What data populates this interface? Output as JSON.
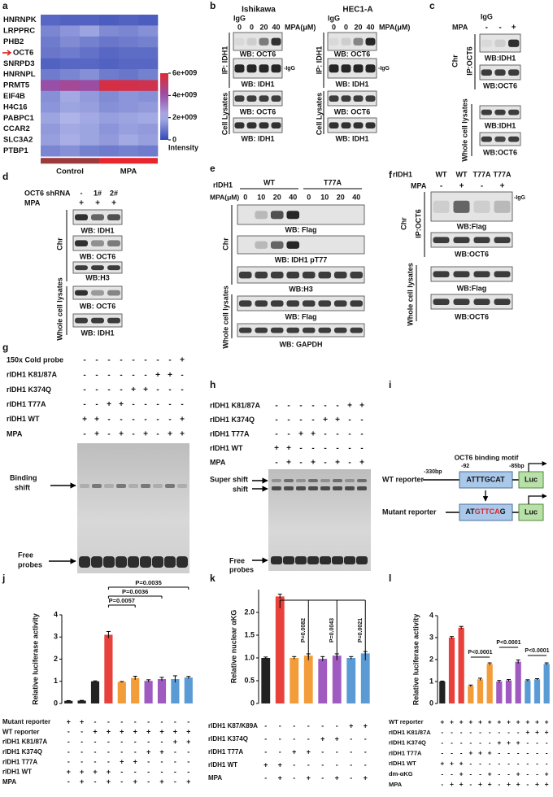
{
  "letters": [
    "a",
    "b",
    "c",
    "d",
    "e",
    "f",
    "g",
    "h",
    "i",
    "j",
    "k",
    "l"
  ],
  "b": {
    "cells": [
      {
        "title": "Ishikawa",
        "igg": "IgG",
        "mpa": "MPA(μM)",
        "lanes": [
          "0",
          "0",
          "20",
          "40"
        ],
        "ip": "IP: IDH1",
        "lysates": "Cell Lysates",
        "blots": [
          "WB: OCT6",
          "WB: IDH1",
          "WB: OCT6",
          "WB: IDH1"
        ],
        "igg_mark": "-IgG"
      },
      {
        "title": "HEC1-A",
        "igg": "IgG",
        "mpa": "MPA(μM)",
        "lanes": [
          "0",
          "0",
          "20",
          "40"
        ],
        "ip": "IP: IDH1",
        "lysates": "Cell Lysates",
        "blots": [
          "WB: OCT6",
          "WB: IDH1",
          "WB: OCT6",
          "WB: IDH1"
        ],
        "igg_mark": "-IgG"
      }
    ]
  },
  "c": {
    "igg": "IgG",
    "mpa": "MPA",
    "lanes": [
      "-",
      "-",
      "+"
    ],
    "chr": "Chr",
    "ip": "IP:OCT6",
    "wcl": "Whole cell lysates",
    "blots": [
      "WB:IDH1",
      "WB:OCT6",
      "WB:IDH1",
      "WB:OCT6"
    ]
  },
  "d": {
    "shrna": "OCT6 shRNA",
    "shrna_lanes": [
      "-",
      "1#",
      "2#"
    ],
    "mpa": "MPA",
    "mpa_lanes": [
      "+",
      "+",
      "+"
    ],
    "chr": "Chr",
    "wcl": "Whole cell lysates",
    "blots": [
      "WB: IDH1",
      "WB: OCT6",
      "WB:H3",
      "WB: OCT6",
      "WB: IDH1"
    ]
  },
  "e": {
    "ridh1": "rIDH1",
    "groups": [
      "WT",
      "T77A"
    ],
    "mpa": "MPA(μM)",
    "lanes": [
      "0",
      "10",
      "20",
      "40",
      "0",
      "10",
      "20",
      "40"
    ],
    "chr": "Chr",
    "wcl": "Whole cell lysates",
    "blots": [
      "WB: Flag",
      "WB: IDH1 pT77",
      "WB:H3",
      "WB: Flag",
      "WB: GAPDH"
    ]
  },
  "f": {
    "ridh1": "rIDH1",
    "lanes": [
      "WT",
      "WT",
      "T77A",
      "T77A"
    ],
    "mpa": "MPA",
    "mpa_lanes": [
      "-",
      "+",
      "-",
      "+"
    ],
    "chr": "Chr",
    "ip": "IP:OCT6",
    "wcl": "Whole cell lysates",
    "blots": [
      "WB:Flag",
      "WB:OCT6",
      "WB:Flag",
      "WB:OCT6"
    ],
    "igg_mark": "-IgG"
  },
  "g": {
    "rows": [
      {
        "name": "150x Cold probe",
        "signs": [
          "-",
          "-",
          "-",
          "-",
          "-",
          "-",
          "-",
          "-",
          "+"
        ]
      },
      {
        "name": "rIDH1 K81/87A",
        "signs": [
          "-",
          "-",
          "-",
          "-",
          "-",
          "-",
          "+",
          "+",
          "-"
        ]
      },
      {
        "name": "rIDH1 K374Q",
        "signs": [
          "-",
          "-",
          "-",
          "-",
          "+",
          "+",
          "-",
          "-",
          "-"
        ]
      },
      {
        "name": "rIDH1 T77A",
        "signs": [
          "-",
          "-",
          "+",
          "+",
          "-",
          "-",
          "-",
          "-",
          "-"
        ]
      },
      {
        "name": "rIDH1 WT",
        "signs": [
          "+",
          "+",
          "-",
          "-",
          "-",
          "-",
          "-",
          "-",
          "+"
        ]
      },
      {
        "name": "MPA",
        "signs": [
          "-",
          "+",
          "-",
          "+",
          "-",
          "+",
          "-",
          "+",
          "+"
        ]
      }
    ],
    "shift": [
      "Binding",
      "shift"
    ],
    "free": [
      "Free",
      "probes"
    ]
  },
  "h": {
    "rows": [
      {
        "name": "rIDH1 K81/87A",
        "signs": [
          "-",
          "-",
          "-",
          "-",
          "-",
          "-",
          "+",
          "+"
        ]
      },
      {
        "name": "rIDH1 K374Q",
        "signs": [
          "-",
          "-",
          "-",
          "-",
          "+",
          "+",
          "-",
          "-"
        ]
      },
      {
        "name": "rIDH1 T77A",
        "signs": [
          "-",
          "-",
          "+",
          "+",
          "-",
          "-",
          "-",
          "-"
        ]
      },
      {
        "name": "rIDH1 WT",
        "signs": [
          "+",
          "+",
          "-",
          "-",
          "-",
          "-",
          "-",
          "-"
        ]
      },
      {
        "name": "MPA",
        "signs": [
          "-",
          "+",
          "-",
          "+",
          "-",
          "+",
          "-",
          "+"
        ]
      }
    ],
    "super_shift": "Super shift",
    "shift": "shift",
    "free": [
      "Free",
      "probes"
    ]
  },
  "i": {
    "motif": "OCT6 binding motif",
    "pos": [
      "-330bp",
      "-92",
      "-85bp"
    ],
    "wt": "WT reporter",
    "mut": "Mutant reporter",
    "wt_seq": "ATTTGCAT",
    "mut_seq": [
      "AT",
      "GTTCA",
      "G"
    ],
    "luc": "Luc"
  },
  "chart_data": [
    {
      "type": "heatmap",
      "rows": [
        "HNRNPK",
        "LRPPRC",
        "PHB2",
        "OCT6",
        "SNRPD3",
        "HNRNPL",
        "PRMT5",
        "EIF4B",
        "H4C16",
        "PABPC1",
        "CCAR2",
        "SLC3A2",
        "PTBP1"
      ],
      "groups": [
        "Control",
        "MPA"
      ],
      "values": [
        [
          600000000.0,
          500000000.0,
          500000000.0,
          400000000.0,
          500000000.0,
          400000000.0
        ],
        [
          1200000000.0,
          1500000000.0,
          1800000000.0,
          1300000000.0,
          1200000000.0,
          1400000000.0
        ],
        [
          1000000000.0,
          1300000000.0,
          1100000000.0,
          900000000.0,
          1000000000.0,
          1100000000.0
        ],
        [
          900000000.0,
          1000000000.0,
          800000000.0,
          600000000.0,
          700000000.0,
          700000000.0
        ],
        [
          500000000.0,
          600000000.0,
          600000000.0,
          500000000.0,
          600000000.0,
          600000000.0
        ],
        [
          1000000000.0,
          1200000000.0,
          1400000000.0,
          1000000000.0,
          900000000.0,
          1100000000.0
        ],
        [
          4000000000.0,
          4300000000.0,
          4100000000.0,
          5700000000.0,
          5600000000.0,
          5500000000.0
        ],
        [
          1400000000.0,
          1900000000.0,
          1600000000.0,
          1300000000.0,
          1500000000.0,
          1400000000.0
        ],
        [
          1500000000.0,
          1800000000.0,
          1700000000.0,
          1400000000.0,
          1500000000.0,
          1600000000.0
        ],
        [
          1800000000.0,
          2100000000.0,
          1900000000.0,
          1700000000.0,
          1800000000.0,
          1900000000.0
        ],
        [
          1600000000.0,
          1900000000.0,
          1800000000.0,
          1500000000.0,
          1700000000.0,
          1600000000.0
        ],
        [
          1700000000.0,
          2000000000.0,
          1800000000.0,
          1600000000.0,
          1900000000.0,
          1700000000.0
        ],
        [
          1200000000.0,
          1400000000.0,
          1100000000.0,
          1000000000.0,
          1100000000.0,
          1000000000.0
        ]
      ],
      "zlim": [
        0,
        6000000000
      ],
      "zticks": [
        0,
        {
          "value": 2000000000,
          "label": "2e+009"
        },
        {
          "value": 4000000000,
          "label": "4e+009"
        },
        {
          "value": 6000000000,
          "label": "6e+009"
        }
      ],
      "colorbar_label": "Intensity"
    },
    {
      "type": "bar",
      "ylabel": "Relative luciferase activity",
      "values": [
        0.12,
        0.13,
        1.0,
        3.1,
        0.97,
        1.15,
        1.02,
        1.1,
        1.1,
        1.17
      ],
      "errors": [
        0.01,
        0.01,
        0.02,
        0.15,
        0.02,
        0.08,
        0.05,
        0.08,
        0.15,
        0.05
      ],
      "colors": [
        "#222222",
        "#222222",
        "#222222",
        "#e8413c",
        "#f39c3a",
        "#f39c3a",
        "#a05bc0",
        "#a05bc0",
        "#5b9bd5",
        "#5b9bd5"
      ],
      "ylim": [
        0,
        4
      ],
      "yticks": [
        0,
        1,
        2,
        3,
        4
      ],
      "conditions": [
        {
          "name": "Mutant reporter",
          "signs": [
            "+",
            "+",
            "-",
            "-",
            "-",
            "-",
            "-",
            "-",
            "-",
            "-"
          ]
        },
        {
          "name": "WT reporter",
          "signs": [
            "-",
            "-",
            "+",
            "+",
            "+",
            "+",
            "+",
            "+",
            "+",
            "+"
          ]
        },
        {
          "name": "rIDH1 K81/87A",
          "signs": [
            "-",
            "-",
            "-",
            "-",
            "-",
            "-",
            "-",
            "-",
            "+",
            "+"
          ]
        },
        {
          "name": "rIDH1 K374Q",
          "signs": [
            "-",
            "-",
            "-",
            "-",
            "-",
            "-",
            "+",
            "+",
            "-",
            "-"
          ]
        },
        {
          "name": "rIDH1 T77A",
          "signs": [
            "-",
            "-",
            "-",
            "-",
            "+",
            "+",
            "-",
            "-",
            "-",
            "-"
          ]
        },
        {
          "name": "rIDH1 WT",
          "signs": [
            "+",
            "+",
            "+",
            "+",
            "-",
            "-",
            "-",
            "-",
            "-",
            "-"
          ]
        },
        {
          "name": "MPA",
          "signs": [
            "-",
            "+",
            "-",
            "+",
            "-",
            "+",
            "-",
            "+",
            "-",
            "+"
          ]
        }
      ],
      "annotations": [
        "P=0.0035",
        "P=0.0036",
        "P=0.0057"
      ]
    },
    {
      "type": "bar",
      "ylabel": "Relative nuclear αKG",
      "values": [
        1.0,
        2.35,
        1.0,
        1.05,
        0.98,
        1.05,
        1.0,
        1.1
      ],
      "errors": [
        0.02,
        0.05,
        0.03,
        0.04,
        0.05,
        0.04,
        0.03,
        0.04
      ],
      "colors": [
        "#222222",
        "#e8413c",
        "#f39c3a",
        "#f39c3a",
        "#a05bc0",
        "#a05bc0",
        "#5b9bd5",
        "#5b9bd5"
      ],
      "ylim": [
        0,
        2.5
      ],
      "yticks": [
        0,
        0.5,
        {
          "value": 1,
          "label": "1.0"
        },
        1.5,
        {
          "value": 2,
          "label": "2.0"
        }
      ],
      "conditions": [
        {
          "name": "rIDH1 K87/K89A",
          "signs": [
            "-",
            "-",
            "-",
            "-",
            "-",
            "-",
            "+",
            "+"
          ]
        },
        {
          "name": "rIDH1 K374Q",
          "signs": [
            "-",
            "-",
            "-",
            "-",
            "+",
            "+",
            "-",
            "-"
          ]
        },
        {
          "name": "rIDH1 T77A",
          "signs": [
            "-",
            "-",
            "+",
            "+",
            "-",
            "-",
            "-",
            "-"
          ]
        },
        {
          "name": "rIDH1 WT",
          "signs": [
            "+",
            "+",
            "-",
            "-",
            "-",
            "-",
            "-",
            "-"
          ]
        },
        {
          "name": "MPA",
          "signs": [
            "-",
            "+",
            "-",
            "+",
            "-",
            "+",
            "-",
            "+"
          ]
        }
      ],
      "annotations": [
        "P=0.0082",
        "P=0.0043",
        "P=0.0021"
      ]
    },
    {
      "type": "bar",
      "ylabel": "Relative luciferase activity",
      "values": [
        1.0,
        3.0,
        3.45,
        0.8,
        1.1,
        1.8,
        1.0,
        1.05,
        1.9,
        1.05,
        1.1,
        1.8
      ],
      "errors": [
        0.02,
        0.05,
        0.06,
        0.04,
        0.05,
        0.05,
        0.05,
        0.04,
        0.08,
        0.03,
        0.03,
        0.05
      ],
      "colors": [
        "#222222",
        "#e8413c",
        "#e8413c",
        "#f39c3a",
        "#f39c3a",
        "#f39c3a",
        "#a05bc0",
        "#a05bc0",
        "#a05bc0",
        "#5b9bd5",
        "#5b9bd5",
        "#5b9bd5"
      ],
      "ylim": [
        0,
        4
      ],
      "yticks": [
        0,
        1,
        2,
        3,
        4
      ],
      "conditions": [
        {
          "name": "WT reporter",
          "signs": [
            "+",
            "+",
            "+",
            "+",
            "+",
            "+",
            "+",
            "+",
            "+",
            "+",
            "+",
            "+"
          ]
        },
        {
          "name": "rIDH1 K81/87A",
          "signs": [
            "-",
            "-",
            "-",
            "-",
            "-",
            "-",
            "-",
            "-",
            "-",
            "+",
            "+",
            "+"
          ]
        },
        {
          "name": "rIDH1 K374Q",
          "signs": [
            "-",
            "-",
            "-",
            "-",
            "-",
            "-",
            "+",
            "+",
            "+",
            "-",
            "-",
            "-"
          ]
        },
        {
          "name": "rIDH1 T77A",
          "signs": [
            "-",
            "-",
            "-",
            "+",
            "+",
            "+",
            "-",
            "-",
            "-",
            "-",
            "-",
            "-"
          ]
        },
        {
          "name": "rIDH1 WT",
          "signs": [
            "+",
            "+",
            "+",
            "-",
            "-",
            "-",
            "-",
            "-",
            "-",
            "-",
            "-",
            "-"
          ]
        },
        {
          "name": "dm-αKG",
          "signs": [
            "-",
            "-",
            "+",
            "-",
            "-",
            "+",
            "-",
            "-",
            "+",
            "-",
            "-",
            "+"
          ]
        },
        {
          "name": "MPA",
          "signs": [
            "-",
            "+",
            "+",
            "-",
            "+",
            "+",
            "-",
            "+",
            "+",
            "-",
            "+",
            "+"
          ]
        }
      ],
      "annotations": [
        "P<0.0001",
        "P<0.0001",
        "P<0.0001"
      ]
    }
  ]
}
